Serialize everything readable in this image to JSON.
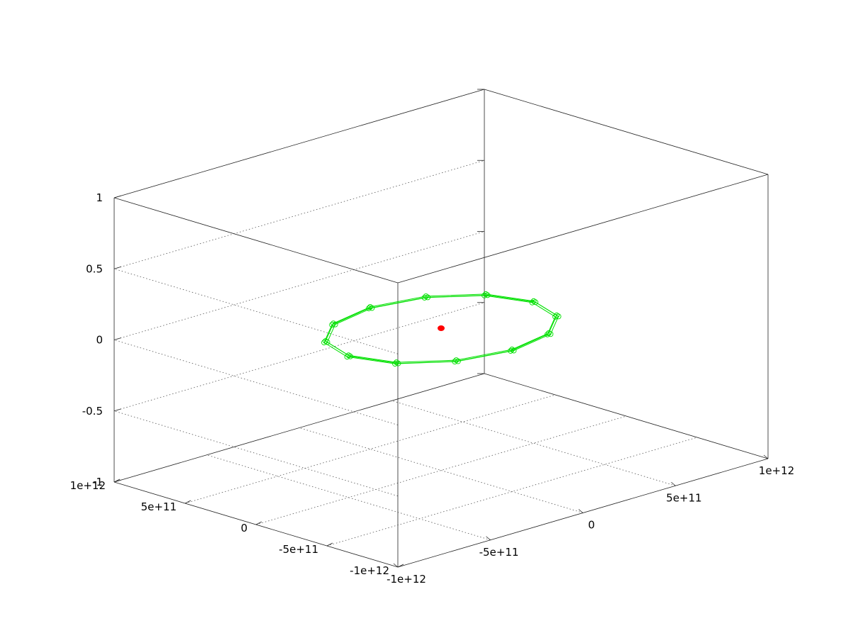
{
  "chart_data": {
    "type": "scatter",
    "title": "",
    "xlabel": "",
    "ylabel": "",
    "zlabel": "",
    "xlim": [
      -1000000000000.0,
      1000000000000.0
    ],
    "ylim": [
      -1000000000000.0,
      1000000000000.0
    ],
    "zlim": [
      -1,
      1
    ],
    "grid": true,
    "legend": "none",
    "z_ticks": [
      "1",
      "0.5",
      "0",
      "-0.5",
      "-1"
    ],
    "x_ticks": [
      "-1e+12",
      "-5e+11",
      "0",
      "5e+11",
      "1e+12"
    ],
    "y_ticks": [
      "-1e+12",
      "-5e+11",
      "0",
      "5e+11",
      "1e+12"
    ],
    "orbit_color": "#00e000",
    "center_color": "#ff0000",
    "series": [
      {
        "style": "linespoints",
        "x": [
          500000000000,
          433000000000,
          250000000000,
          0,
          -250000000000,
          -433000000000,
          -500000000000,
          -433000000000,
          -250000000000,
          0,
          250000000000,
          433000000000,
          500000000000
        ],
        "y": [
          0,
          250000000000,
          433000000000,
          500000000000,
          433000000000,
          250000000000,
          0,
          -250000000000,
          -433000000000,
          -500000000000,
          -433000000000,
          -250000000000,
          0
        ],
        "z": [
          0,
          0,
          0,
          0,
          0,
          0,
          0,
          0,
          0,
          0,
          0,
          0,
          0
        ]
      },
      {
        "style": "points",
        "x": [
          0
        ],
        "y": [
          0
        ],
        "z": [
          0
        ]
      }
    ]
  }
}
